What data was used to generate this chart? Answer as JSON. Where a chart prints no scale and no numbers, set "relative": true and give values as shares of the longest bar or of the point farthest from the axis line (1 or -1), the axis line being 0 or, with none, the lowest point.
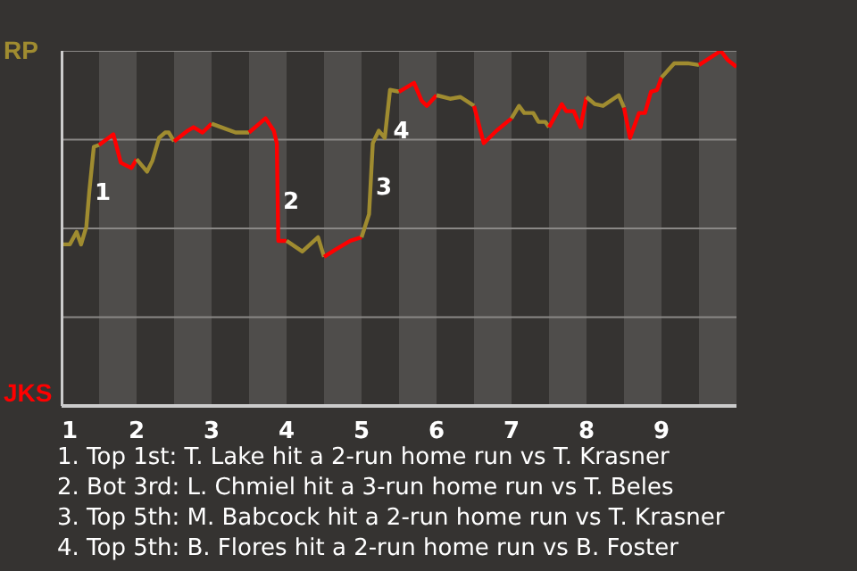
{
  "chart_data": {
    "type": "line",
    "relative": true,
    "xlim": [
      1,
      10
    ],
    "xticks": [
      1,
      2,
      3,
      4,
      5,
      6,
      7,
      8,
      9
    ],
    "line_style": "solid",
    "marker": "none",
    "series": [
      {
        "color": "#a08c30",
        "x": [
          1.0,
          1.11,
          1.2,
          1.26,
          1.33,
          1.37,
          1.43,
          1.5
        ],
        "values": [
          0.455,
          0.455,
          0.49,
          0.455,
          0.505,
          0.605,
          0.73,
          0.735
        ]
      },
      {
        "color": "#ff0000",
        "x": [
          1.5,
          1.69,
          1.79,
          1.93,
          2.0
        ],
        "values": [
          0.735,
          0.765,
          0.685,
          0.67,
          0.695
        ]
      },
      {
        "color": "#a08c30",
        "x": [
          2.0,
          2.14,
          2.21,
          2.3,
          2.38,
          2.43,
          2.5
        ],
        "values": [
          0.695,
          0.66,
          0.69,
          0.755,
          0.77,
          0.77,
          0.745
        ]
      },
      {
        "color": "#ff0000",
        "x": [
          2.5,
          2.68,
          2.76,
          2.88,
          3.0
        ],
        "values": [
          0.745,
          0.775,
          0.785,
          0.77,
          0.795
        ]
      },
      {
        "color": "#a08c30",
        "x": [
          3.0,
          3.32,
          3.5
        ],
        "values": [
          0.795,
          0.77,
          0.77
        ]
      },
      {
        "color": "#ff0000",
        "x": [
          3.5,
          3.72,
          3.83,
          3.87,
          3.89,
          4.0
        ],
        "values": [
          0.77,
          0.81,
          0.775,
          0.74,
          0.465,
          0.465
        ]
      },
      {
        "color": "#a08c30",
        "x": [
          4.0,
          4.21,
          4.42,
          4.5
        ],
        "values": [
          0.465,
          0.435,
          0.475,
          0.42
        ]
      },
      {
        "color": "#ff0000",
        "x": [
          4.5,
          4.65,
          4.85,
          5.0
        ],
        "values": [
          0.42,
          0.44,
          0.465,
          0.475
        ]
      },
      {
        "color": "#a08c30",
        "x": [
          5.0,
          5.1,
          5.15,
          5.23,
          5.31,
          5.38,
          5.5
        ],
        "values": [
          0.475,
          0.54,
          0.74,
          0.775,
          0.755,
          0.89,
          0.885
        ]
      },
      {
        "color": "#ff0000",
        "x": [
          5.5,
          5.7,
          5.8,
          5.87,
          6.0
        ],
        "values": [
          0.885,
          0.91,
          0.86,
          0.845,
          0.875
        ]
      },
      {
        "color": "#a08c30",
        "x": [
          6.0,
          6.18,
          6.32,
          6.5
        ],
        "values": [
          0.875,
          0.865,
          0.87,
          0.845
        ]
      },
      {
        "color": "#ff0000",
        "x": [
          6.5,
          6.63,
          6.8,
          7.0
        ],
        "values": [
          0.845,
          0.74,
          0.775,
          0.81
        ]
      },
      {
        "color": "#a08c30",
        "x": [
          7.0,
          7.1,
          7.17,
          7.29,
          7.36,
          7.45,
          7.5
        ],
        "values": [
          0.81,
          0.845,
          0.825,
          0.825,
          0.8,
          0.8,
          0.785
        ]
      },
      {
        "color": "#ff0000",
        "x": [
          7.5,
          7.67,
          7.73,
          7.83,
          7.92,
          8.0
        ],
        "values": [
          0.785,
          0.85,
          0.83,
          0.83,
          0.785,
          0.87
        ]
      },
      {
        "color": "#a08c30",
        "x": [
          8.0,
          8.11,
          8.22,
          8.43,
          8.5
        ],
        "values": [
          0.87,
          0.85,
          0.845,
          0.875,
          0.84
        ]
      },
      {
        "color": "#ff0000",
        "x": [
          8.5,
          8.58,
          8.7,
          8.78,
          8.86,
          8.94,
          9.0
        ],
        "values": [
          0.84,
          0.755,
          0.825,
          0.825,
          0.885,
          0.89,
          0.925
        ]
      },
      {
        "color": "#a08c30",
        "x": [
          9.0,
          9.17,
          9.35,
          9.5
        ],
        "values": [
          0.925,
          0.965,
          0.965,
          0.96
        ]
      },
      {
        "color": "#ff0000",
        "x": [
          9.5,
          9.79,
          9.88,
          10.0
        ],
        "values": [
          0.96,
          1,
          0.975,
          0.955
        ]
      }
    ],
    "ref_lines": [
      {
        "axis": "y",
        "value": 1,
        "color": "#8a8886"
      },
      {
        "axis": "y",
        "value": 0.75,
        "color": "#8a8886"
      },
      {
        "axis": "y",
        "value": 0.5,
        "color": "#8a8886"
      },
      {
        "axis": "y",
        "value": 0.25,
        "color": "#8a8886"
      }
    ],
    "bands": [
      {
        "axis": "x",
        "from": 1.5,
        "to": 2,
        "color": "#4f4d4b"
      },
      {
        "axis": "x",
        "from": 2.5,
        "to": 3,
        "color": "#4f4d4b"
      },
      {
        "axis": "x",
        "from": 3.5,
        "to": 4,
        "color": "#4f4d4b"
      },
      {
        "axis": "x",
        "from": 4.5,
        "to": 5,
        "color": "#4f4d4b"
      },
      {
        "axis": "x",
        "from": 5.5,
        "to": 6,
        "color": "#4f4d4b"
      },
      {
        "axis": "x",
        "from": 6.5,
        "to": 7,
        "color": "#4f4d4b"
      },
      {
        "axis": "x",
        "from": 7.5,
        "to": 8,
        "color": "#4f4d4b"
      },
      {
        "axis": "x",
        "from": 8.5,
        "to": 9,
        "color": "#4f4d4b"
      },
      {
        "axis": "x",
        "from": 9.5,
        "to": 10,
        "color": "#4f4d4b"
      }
    ],
    "annotations": [
      "RP",
      "JKS",
      {
        "text": "1",
        "x": 1.37,
        "y": 0.605
      },
      {
        "text": "2",
        "x": 3.88,
        "y": 0.58
      },
      {
        "text": "3",
        "x": 5.12,
        "y": 0.62
      },
      {
        "text": "4",
        "x": 5.35,
        "y": 0.78
      },
      "1. Top 1st: T. Lake hit a 2-run home run vs T. Krasner",
      "2. Bot 3rd: L. Chmiel hit a 3-run home run vs T. Beles",
      "3. Top 5th: M. Babcock hit a 2-run home run vs T. Krasner",
      "4. Top 5th: B. Flores hit a 2-run home run vs B. Foster"
    ]
  }
}
